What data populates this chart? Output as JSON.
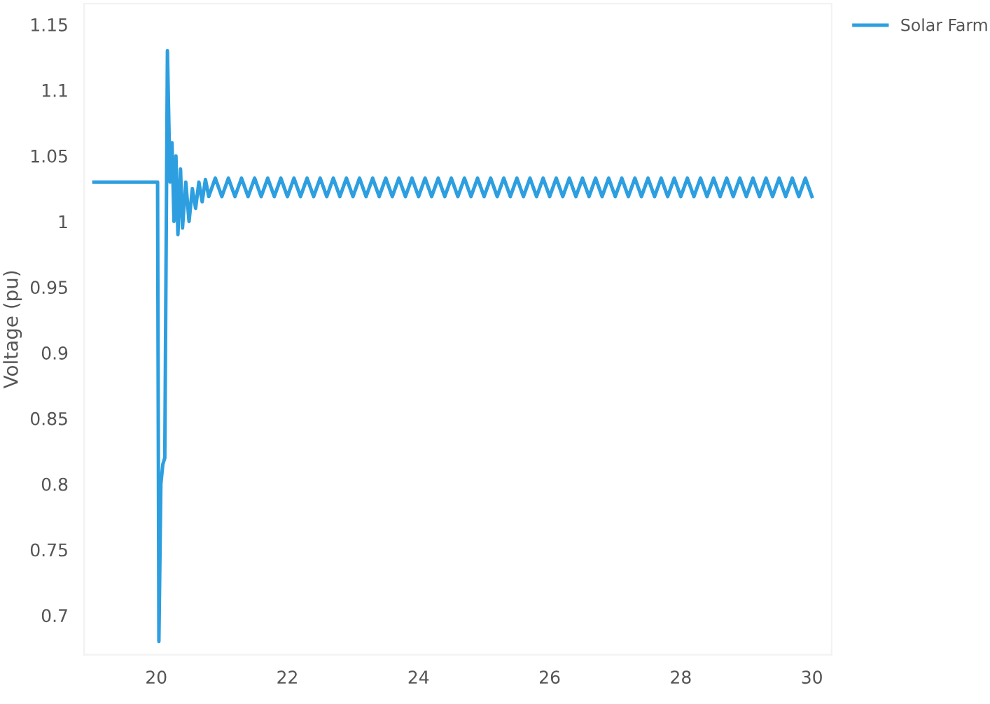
{
  "chart_data": {
    "type": "line",
    "ylabel": "Voltage (pu)",
    "xlim": [
      18.9,
      30.3
    ],
    "ylim": [
      0.67,
      1.166
    ],
    "xticks": [
      20,
      22,
      24,
      26,
      28,
      30
    ],
    "yticks": [
      0.7,
      0.75,
      0.8,
      0.85,
      0.9,
      0.95,
      1,
      1.05,
      1.1,
      1.15
    ],
    "grid": false,
    "legend": "top right",
    "marker": "none",
    "line_style": "solid",
    "series": [
      {
        "name": "Solar Farm",
        "color": "#2d9fe0",
        "x": [
          19.05,
          20.0,
          20.02,
          20.04,
          20.07,
          20.1,
          20.13,
          20.17,
          20.21,
          20.24,
          20.27,
          20.3,
          20.33,
          20.37,
          20.4,
          20.45,
          20.5,
          20.55,
          20.6,
          20.65,
          20.7,
          20.75,
          20.8,
          20.9,
          21.0,
          21.1,
          21.2,
          21.3,
          21.4,
          21.5,
          21.6,
          21.7,
          21.8,
          21.9,
          22.0,
          22.1,
          22.2,
          22.3,
          22.4,
          22.5,
          22.6,
          22.7,
          22.8,
          22.9,
          23.0,
          23.1,
          23.2,
          23.3,
          23.4,
          23.5,
          23.6,
          23.7,
          23.8,
          23.9,
          24.0,
          24.1,
          24.2,
          24.3,
          24.4,
          24.5,
          24.6,
          24.7,
          24.8,
          24.9,
          25.0,
          25.1,
          25.2,
          25.3,
          25.4,
          25.5,
          25.6,
          25.7,
          25.8,
          25.9,
          26.0,
          26.1,
          26.2,
          26.3,
          26.4,
          26.5,
          26.6,
          26.7,
          26.8,
          26.9,
          27.0,
          27.1,
          27.2,
          27.3,
          27.4,
          27.5,
          27.6,
          27.7,
          27.8,
          27.9,
          28.0,
          28.1,
          28.2,
          28.3,
          28.4,
          28.5,
          28.6,
          28.7,
          28.8,
          28.9,
          29.0,
          29.1,
          29.2,
          29.3,
          29.4,
          29.5,
          29.6,
          29.7,
          29.8,
          29.9,
          30.0
        ],
        "values": [
          1.03,
          1.03,
          1.03,
          0.68,
          0.8,
          0.815,
          0.82,
          1.13,
          1.03,
          1.06,
          1.0,
          1.05,
          0.99,
          1.04,
          0.995,
          1.03,
          1.0,
          1.025,
          1.01,
          1.03,
          1.015,
          1.032,
          1.019,
          1.033,
          1.019,
          1.033,
          1.019,
          1.033,
          1.019,
          1.033,
          1.019,
          1.033,
          1.019,
          1.033,
          1.019,
          1.033,
          1.019,
          1.033,
          1.019,
          1.033,
          1.019,
          1.033,
          1.019,
          1.033,
          1.019,
          1.033,
          1.019,
          1.033,
          1.019,
          1.033,
          1.019,
          1.033,
          1.019,
          1.033,
          1.019,
          1.033,
          1.019,
          1.033,
          1.019,
          1.033,
          1.019,
          1.033,
          1.019,
          1.033,
          1.019,
          1.033,
          1.019,
          1.033,
          1.019,
          1.033,
          1.019,
          1.033,
          1.019,
          1.033,
          1.019,
          1.033,
          1.019,
          1.033,
          1.019,
          1.033,
          1.019,
          1.033,
          1.019,
          1.033,
          1.019,
          1.033,
          1.019,
          1.033,
          1.019,
          1.033,
          1.019,
          1.033,
          1.019,
          1.033,
          1.019,
          1.033,
          1.019,
          1.033,
          1.019,
          1.033,
          1.019,
          1.033,
          1.019,
          1.033,
          1.019,
          1.033,
          1.019,
          1.033,
          1.019,
          1.033,
          1.019,
          1.033,
          1.019,
          1.033,
          1.019
        ]
      }
    ]
  }
}
